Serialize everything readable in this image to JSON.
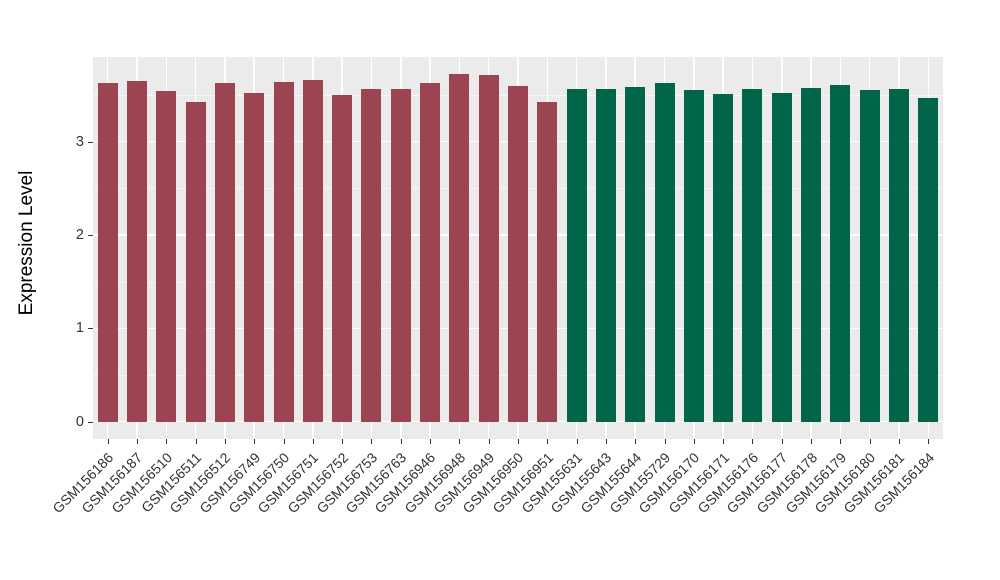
{
  "chart_data": {
    "type": "bar",
    "title": "",
    "xlabel": "",
    "ylabel": "Expression Level",
    "categories": [
      "GSM156186",
      "GSM156187",
      "GSM156510",
      "GSM156511",
      "GSM156512",
      "GSM156749",
      "GSM156750",
      "GSM156751",
      "GSM156752",
      "GSM156753",
      "GSM156763",
      "GSM156946",
      "GSM156948",
      "GSM156949",
      "GSM156950",
      "GSM156951",
      "GSM155631",
      "GSM155643",
      "GSM155644",
      "GSM155729",
      "GSM156170",
      "GSM156171",
      "GSM156176",
      "GSM156177",
      "GSM156178",
      "GSM156179",
      "GSM156180",
      "GSM156181",
      "GSM156184"
    ],
    "values": [
      3.63,
      3.65,
      3.54,
      3.43,
      3.63,
      3.52,
      3.64,
      3.66,
      3.5,
      3.56,
      3.56,
      3.63,
      3.73,
      3.71,
      3.6,
      3.43,
      3.56,
      3.57,
      3.59,
      3.63,
      3.55,
      3.51,
      3.56,
      3.52,
      3.58,
      3.61,
      3.55,
      3.56,
      3.47
    ],
    "bar_groups": [
      0,
      0,
      0,
      0,
      0,
      0,
      0,
      0,
      0,
      0,
      0,
      0,
      0,
      0,
      0,
      0,
      1,
      1,
      1,
      1,
      1,
      1,
      1,
      1,
      1,
      1,
      1,
      1,
      1
    ],
    "group_colors": [
      "#9C4452",
      "#006549"
    ],
    "yticks": [
      0,
      1,
      2,
      3
    ],
    "ylim": [
      0,
      3.92
    ],
    "grid": "on",
    "legend": "none",
    "panel_background": "#EBEBEB",
    "gridline_major_color": "#FFFFFF",
    "gridline_minor_color": "rgba(255,255,255,0.55)",
    "axis_text_color": "#333333",
    "tick_mark_color": "#333333"
  }
}
